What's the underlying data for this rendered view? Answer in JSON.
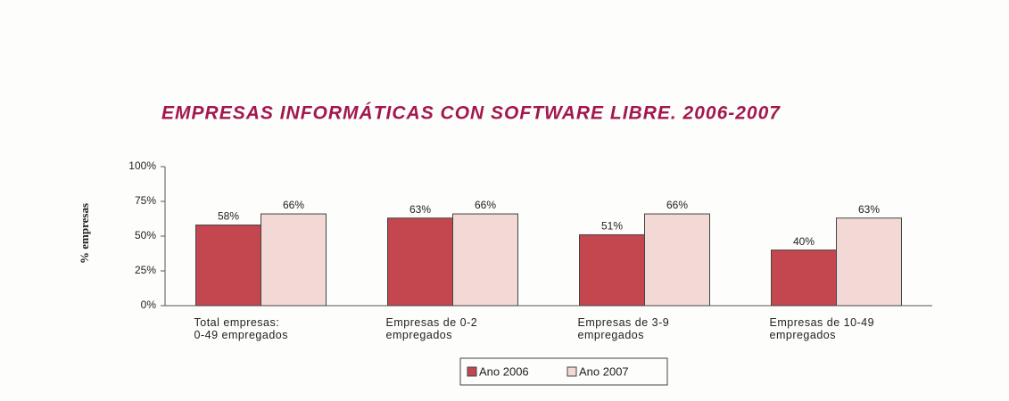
{
  "chart_data": {
    "type": "bar",
    "title": "EMPRESAS INFORMÁTICAS CON SOFTWARE LIBRE. 2006-2007",
    "y_label": "% empresas",
    "categories": [
      "Total empresas:\n0-49 empregados",
      "Empresas de 0-2\nempregados",
      "Empresas de 3-9\nempregados",
      "Empresas de 10-49\nempregados"
    ],
    "series": [
      {
        "name": "Ano 2006",
        "color": "#c4464f",
        "values": [
          58,
          63,
          51,
          40
        ],
        "value_labels": [
          "58%",
          "63%",
          "51%",
          "40%"
        ]
      },
      {
        "name": "Ano 2007",
        "color": "#f3d9d6",
        "values": [
          66,
          66,
          66,
          63
        ],
        "value_labels": [
          "66%",
          "66%",
          "66%",
          "63%"
        ]
      }
    ],
    "ylim": [
      0,
      100
    ],
    "yticks": [
      {
        "value": 0,
        "label": "0%"
      },
      {
        "value": 25,
        "label": "25%"
      },
      {
        "value": 50,
        "label": "50%"
      },
      {
        "value": 75,
        "label": "75%"
      },
      {
        "value": 100,
        "label": "100%"
      }
    ],
    "legend": "bottom"
  }
}
